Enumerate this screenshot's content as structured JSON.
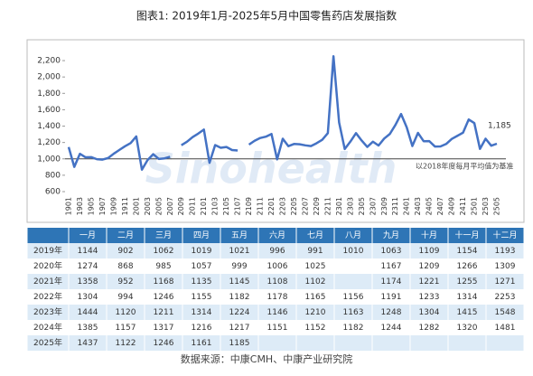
{
  "chart_data": {
    "type": "line",
    "title": "图表1: 2019年1月-2025年5月中国零售药店发展指数",
    "categories": [
      "1901",
      null,
      "1903",
      null,
      "1905",
      null,
      "1907",
      null,
      "1909",
      null,
      "1911",
      null,
      "2001",
      null,
      "2003",
      null,
      "2005",
      null,
      "2007",
      null,
      "2009",
      null,
      "2011",
      null,
      "2101",
      null,
      "2103",
      null,
      "2105",
      null,
      "2107",
      null,
      "2109",
      null,
      "2111",
      null,
      "2201",
      null,
      "2203",
      null,
      "2205",
      null,
      "2207",
      null,
      "2209",
      null,
      "2211",
      null,
      "2301",
      null,
      "2303",
      null,
      "2305",
      null,
      "2307",
      null,
      "2309",
      null,
      "2311",
      null,
      "2401",
      null,
      "2403",
      null,
      "2405",
      null,
      "2407",
      null,
      "2409",
      null,
      "2411",
      null,
      "2501",
      null,
      "2503",
      null,
      "2505"
    ],
    "series": [
      {
        "name": "零售药店发展指数",
        "color": "#4472c4",
        "values": [
          1144,
          902,
          1062,
          1019,
          1021,
          996,
          991,
          1010,
          1063,
          1109,
          1154,
          1193,
          1274,
          868,
          985,
          1057,
          999,
          1006,
          1025,
          null,
          1167,
          1209,
          1266,
          1309,
          1358,
          952,
          1168,
          1135,
          1145,
          1108,
          1102,
          null,
          1174,
          1221,
          1255,
          1271,
          1304,
          994,
          1246,
          1155,
          1182,
          1178,
          1165,
          1156,
          1191,
          1233,
          1314,
          2253,
          1444,
          1120,
          1211,
          1314,
          1224,
          1146,
          1210,
          1163,
          1248,
          1304,
          1415,
          1548,
          1385,
          1157,
          1317,
          1216,
          1217,
          1151,
          1152,
          1182,
          1244,
          1282,
          1320,
          1481,
          1437,
          1122,
          1246,
          1161,
          1185
        ],
        "value_labels": [
          null,
          null,
          null,
          null,
          null,
          null,
          null,
          null,
          null,
          null,
          null,
          null,
          null,
          null,
          null,
          null,
          null,
          null,
          null,
          null,
          null,
          null,
          null,
          null,
          null,
          null,
          null,
          null,
          null,
          null,
          null,
          null,
          null,
          null,
          null,
          null,
          null,
          null,
          null,
          null,
          null,
          null,
          null,
          null,
          null,
          null,
          null,
          null,
          null,
          null,
          null,
          null,
          null,
          null,
          null,
          null,
          null,
          null,
          null,
          null,
          null,
          null,
          null,
          null,
          null,
          null,
          null,
          null,
          null,
          null,
          null,
          null,
          null,
          null,
          null,
          null,
          "1,185"
        ]
      }
    ],
    "ylim": [
      600,
      2300
    ],
    "yticks": [
      600,
      800,
      {
        "value": 1000,
        "label": "1,000"
      },
      {
        "value": 1200,
        "label": "1,200"
      },
      {
        "value": 1400,
        "label": "1,400"
      },
      {
        "value": 1600,
        "label": "1,600"
      },
      {
        "value": 1800,
        "label": "1,800"
      },
      {
        "value": 2000,
        "label": "2,000"
      },
      {
        "value": 2200,
        "label": "2,200"
      }
    ],
    "baseline": 1000,
    "annotation": "以2018年度每月平均值为基准",
    "watermark": "Sinohealth"
  },
  "table": {
    "header": [
      "",
      "一月",
      "二月",
      "三月",
      "四月",
      "五月",
      "六月",
      "七月",
      "八月",
      "九月",
      "十月",
      "十一月",
      "十二月"
    ],
    "row_labels": [
      "2019年",
      "2020年",
      "2021年",
      "2022年",
      "2023年",
      "2024年",
      "2025年"
    ]
  },
  "source": "数据来源：中康CMH、中康产业研究院"
}
